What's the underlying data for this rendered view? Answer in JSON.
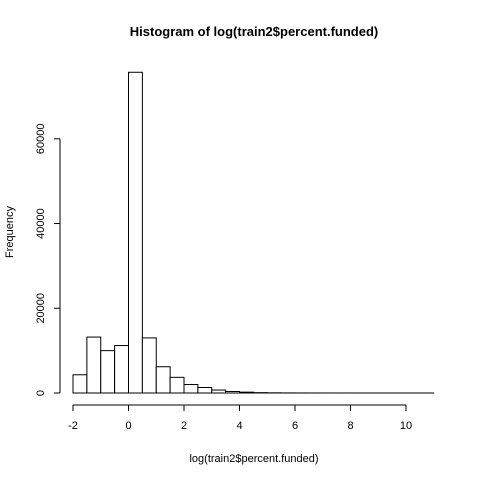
{
  "chart_data": {
    "type": "bar",
    "title": "Histogram of log(train2$percent.funded)",
    "xlabel": "log(train2$percent.funded)",
    "ylabel": "Frequency",
    "xlim": [
      -2,
      11
    ],
    "ylim": [
      0,
      76000
    ],
    "xticks": [
      -2,
      0,
      2,
      4,
      6,
      8,
      10
    ],
    "yticks": [
      0,
      20000,
      40000,
      60000
    ],
    "bin_width": 0.5,
    "bins": [
      {
        "start": -2.0,
        "end": -1.5,
        "value": 4300
      },
      {
        "start": -1.5,
        "end": -1.0,
        "value": 13200
      },
      {
        "start": -1.0,
        "end": -0.5,
        "value": 10000
      },
      {
        "start": -0.5,
        "end": 0.0,
        "value": 11200
      },
      {
        "start": 0.0,
        "end": 0.5,
        "value": 75700
      },
      {
        "start": 0.5,
        "end": 1.0,
        "value": 13000
      },
      {
        "start": 1.0,
        "end": 1.5,
        "value": 6200
      },
      {
        "start": 1.5,
        "end": 2.0,
        "value": 3700
      },
      {
        "start": 2.0,
        "end": 2.5,
        "value": 2000
      },
      {
        "start": 2.5,
        "end": 3.0,
        "value": 1300
      },
      {
        "start": 3.0,
        "end": 3.5,
        "value": 700
      },
      {
        "start": 3.5,
        "end": 4.0,
        "value": 350
      },
      {
        "start": 4.0,
        "end": 4.5,
        "value": 200
      },
      {
        "start": 4.5,
        "end": 5.0,
        "value": 80
      },
      {
        "start": 5.0,
        "end": 5.5,
        "value": 40
      },
      {
        "start": 5.5,
        "end": 6.0,
        "value": 20
      },
      {
        "start": 6.0,
        "end": 6.5,
        "value": 10
      },
      {
        "start": 6.5,
        "end": 7.0,
        "value": 5
      },
      {
        "start": 7.0,
        "end": 7.5,
        "value": 3
      },
      {
        "start": 7.5,
        "end": 8.0,
        "value": 2
      },
      {
        "start": 8.0,
        "end": 8.5,
        "value": 1
      },
      {
        "start": 8.5,
        "end": 9.0,
        "value": 1
      },
      {
        "start": 9.0,
        "end": 9.5,
        "value": 1
      },
      {
        "start": 9.5,
        "end": 10.0,
        "value": 1
      },
      {
        "start": 10.0,
        "end": 10.5,
        "value": 1
      },
      {
        "start": 10.5,
        "end": 11.0,
        "value": 1
      }
    ],
    "grid": false,
    "bar_fill": "#ffffff",
    "bar_stroke": "#000000"
  }
}
